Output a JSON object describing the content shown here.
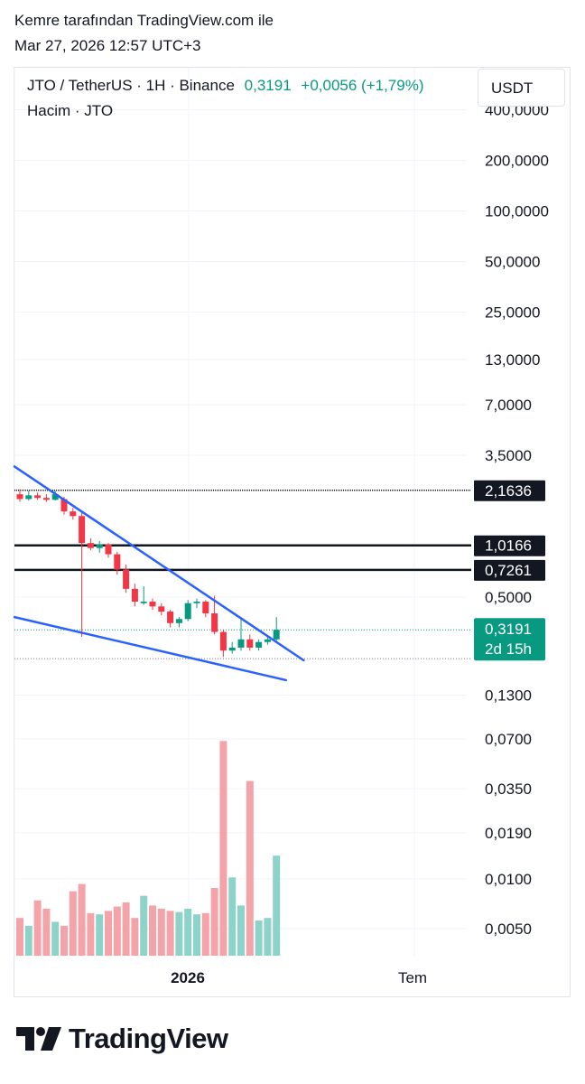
{
  "header": {
    "line1": "Kemre tarafından TradingView.com ile",
    "line2": "Mar 27, 2026 12:57 UTC+3"
  },
  "legend": {
    "symbol": "JTO / TetherUS · 1H · Binance",
    "price": "0,3191",
    "change": "+0,0056 (+1,79%)",
    "volume_label": "Hacim · JTO"
  },
  "currency": "USDT",
  "brand": {
    "name": "TradingView",
    "logo_icon": "tradingview-logo-icon"
  },
  "colors": {
    "up": "#089981",
    "down": "#f23645",
    "vol_up": "#8ed3ca",
    "vol_down": "#f4a3a8",
    "trendline": "#2962ff",
    "level_line": "#131722"
  },
  "chart_data": {
    "type": "candlestick",
    "y_scale": "log",
    "price_axis_ticks": [
      "400,0000",
      "200,0000",
      "100,0000",
      "50,0000",
      "25,0000",
      "13,0000",
      "7,0000",
      "3,5000",
      "0,5000",
      "0,1300"
    ],
    "volume_axis_ticks": [
      "0,0700",
      "0,0350",
      "0,0190",
      "0,0100",
      "0,0050"
    ],
    "x_labels": [
      "2026",
      "Tem"
    ],
    "horizontal_levels": [
      {
        "label": "2,1636",
        "value": 2.1636
      },
      {
        "label": "1,0166",
        "value": 1.0166
      },
      {
        "label": "0,7261",
        "value": 0.7261
      }
    ],
    "last_price": {
      "label": "0,3191",
      "countdown": "2d 15h",
      "value": 0.3191
    },
    "low_level": 0.215,
    "trendlines": [
      {
        "name": "upper",
        "from": [
          0,
          3.0
        ],
        "to": [
          28,
          0.21
        ]
      },
      {
        "name": "lower",
        "from": [
          0,
          0.38
        ],
        "to": [
          26,
          0.16
        ]
      }
    ],
    "candles": [
      {
        "o": 2.05,
        "h": 2.2,
        "l": 1.85,
        "c": 1.92
      },
      {
        "o": 1.92,
        "h": 2.15,
        "l": 1.88,
        "c": 2.02
      },
      {
        "o": 2.02,
        "h": 2.1,
        "l": 1.9,
        "c": 1.95
      },
      {
        "o": 1.95,
        "h": 2.05,
        "l": 1.85,
        "c": 1.9
      },
      {
        "o": 1.9,
        "h": 2.15,
        "l": 1.88,
        "c": 2.05
      },
      {
        "o": 1.92,
        "h": 1.98,
        "l": 1.55,
        "c": 1.62
      },
      {
        "o": 1.62,
        "h": 1.7,
        "l": 1.45,
        "c": 1.52
      },
      {
        "o": 1.52,
        "h": 1.62,
        "l": 0.29,
        "c": 1.05
      },
      {
        "o": 1.05,
        "h": 1.12,
        "l": 0.95,
        "c": 0.98
      },
      {
        "o": 0.98,
        "h": 1.08,
        "l": 0.92,
        "c": 1.03
      },
      {
        "o": 1.03,
        "h": 1.05,
        "l": 0.86,
        "c": 0.9
      },
      {
        "o": 0.9,
        "h": 0.93,
        "l": 0.68,
        "c": 0.73
      },
      {
        "o": 0.73,
        "h": 0.78,
        "l": 0.53,
        "c": 0.56
      },
      {
        "o": 0.56,
        "h": 0.6,
        "l": 0.44,
        "c": 0.47
      },
      {
        "o": 0.46,
        "h": 0.58,
        "l": 0.45,
        "c": 0.47
      },
      {
        "o": 0.47,
        "h": 0.49,
        "l": 0.42,
        "c": 0.44
      },
      {
        "o": 0.44,
        "h": 0.46,
        "l": 0.39,
        "c": 0.41
      },
      {
        "o": 0.41,
        "h": 0.42,
        "l": 0.33,
        "c": 0.35
      },
      {
        "o": 0.35,
        "h": 0.38,
        "l": 0.33,
        "c": 0.37
      },
      {
        "o": 0.37,
        "h": 0.48,
        "l": 0.36,
        "c": 0.46
      },
      {
        "o": 0.46,
        "h": 0.49,
        "l": 0.43,
        "c": 0.47
      },
      {
        "o": 0.47,
        "h": 0.48,
        "l": 0.38,
        "c": 0.4
      },
      {
        "o": 0.4,
        "h": 0.51,
        "l": 0.3,
        "c": 0.31
      },
      {
        "o": 0.31,
        "h": 0.32,
        "l": 0.22,
        "c": 0.24
      },
      {
        "o": 0.24,
        "h": 0.27,
        "l": 0.23,
        "c": 0.25
      },
      {
        "o": 0.25,
        "h": 0.37,
        "l": 0.24,
        "c": 0.28
      },
      {
        "o": 0.28,
        "h": 0.3,
        "l": 0.24,
        "c": 0.25
      },
      {
        "o": 0.25,
        "h": 0.28,
        "l": 0.24,
        "c": 0.27
      },
      {
        "o": 0.27,
        "h": 0.29,
        "l": 0.26,
        "c": 0.28
      },
      {
        "o": 0.28,
        "h": 0.38,
        "l": 0.27,
        "c": 0.3191
      }
    ],
    "volume": [
      0.0058,
      0.0052,
      0.0074,
      0.0066,
      0.0055,
      0.0052,
      0.0084,
      0.0093,
      0.0062,
      0.0061,
      0.0064,
      0.0068,
      0.0072,
      0.0058,
      0.0079,
      0.0069,
      0.0066,
      0.0064,
      0.0063,
      0.0066,
      0.0061,
      0.0062,
      0.0088,
      0.068,
      0.0102,
      0.0069,
      0.039,
      0.0056,
      0.0058,
      0.0138
    ]
  }
}
